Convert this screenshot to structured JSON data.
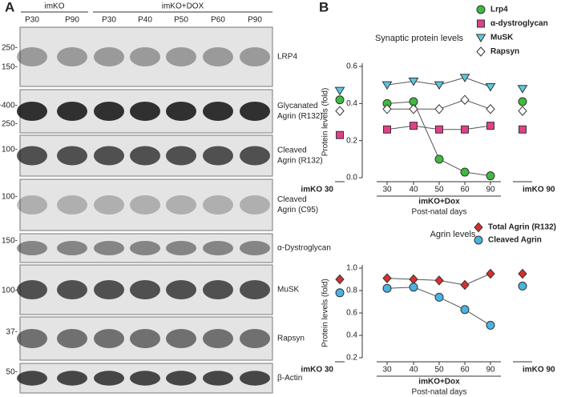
{
  "blot_panel": {
    "panel_label": "A",
    "groups": [
      {
        "label": "imKO",
        "lanes": [
          "P30",
          "P90"
        ]
      },
      {
        "label": "imKO+DOX",
        "lanes": [
          "P30",
          "P40",
          "P50",
          "P60",
          "P90"
        ]
      }
    ],
    "rows": [
      {
        "label": [
          "LRP4"
        ],
        "markers": [
          "250-",
          "150-"
        ]
      },
      {
        "label": [
          "Glycanated",
          "Agrin (R132)"
        ],
        "markers": [
          "~400-",
          "250-"
        ]
      },
      {
        "label": [
          "Cleaved",
          "Agrin (R132)"
        ],
        "markers": [
          "100-"
        ]
      },
      {
        "label": [
          "Cleaved",
          "Agrin (C95)"
        ],
        "markers": [
          "100-"
        ]
      },
      {
        "label": [
          "α-Dystroglycan"
        ],
        "markers": [
          "150-"
        ]
      },
      {
        "label": [
          "MuSK"
        ],
        "markers": [
          "100-"
        ]
      },
      {
        "label": [
          "Rapsyn"
        ],
        "markers": [
          "37-"
        ]
      },
      {
        "label": [
          "β-Actin"
        ],
        "markers": [
          "50-"
        ]
      }
    ]
  },
  "panel_b_label": "B",
  "chart_data": [
    {
      "type": "line",
      "title": "Synaptic protein levels",
      "y_label": "Protein levels (fold)",
      "x_label": "imKO+Dox",
      "x_sublabel": "Post-natal days",
      "categories": [
        "imKO 30",
        "30",
        "40",
        "50",
        "60",
        "90",
        "imKO 90"
      ],
      "ylim": [
        0,
        0.6
      ],
      "yticks": [
        {
          "value": 0,
          "label": "0.0"
        },
        0.2,
        0.4,
        0.6
      ],
      "series": [
        {
          "name": "Lrp4",
          "color": "#3dbb3d",
          "marker": "circle",
          "values": [
            0.42,
            0.4,
            0.41,
            0.1,
            0.03,
            0.01,
            0.41
          ]
        },
        {
          "name": "α-dystroglycan",
          "color": "#e0408a",
          "marker": "square",
          "values": [
            0.23,
            0.26,
            0.28,
            0.26,
            0.26,
            0.28,
            0.26
          ]
        },
        {
          "name": "MuSK",
          "color": "#5cc8e2",
          "marker": "triangle-down",
          "values": [
            0.47,
            0.5,
            0.52,
            0.5,
            0.54,
            0.49,
            0.48
          ]
        },
        {
          "name": "Rapsyn",
          "color": "#ffffff",
          "marker": "diamond",
          "values": [
            0.36,
            0.37,
            0.37,
            0.37,
            0.42,
            0.37,
            0.36
          ]
        }
      ]
    },
    {
      "type": "line",
      "title": "Agrin levels",
      "y_label": "Protein levels (fold)",
      "x_label": "imKO+Dox",
      "x_sublabel": "Post-natal days",
      "categories": [
        "imKO 30",
        "30",
        "40",
        "50",
        "60",
        "90",
        "imKO 90"
      ],
      "ylim": [
        0.2,
        1.0
      ],
      "yticks": [
        0.2,
        0.4,
        0.6,
        0.8,
        {
          "value": 1.0,
          "label": "1.0"
        }
      ],
      "series": [
        {
          "name": "Total Agrin (R132)",
          "color": "#d7302f",
          "marker": "diamond",
          "values": [
            0.9,
            0.91,
            0.9,
            0.89,
            0.85,
            0.95,
            0.95
          ]
        },
        {
          "name": "Cleaved Agrin",
          "color": "#4ab3e0",
          "marker": "circle",
          "values": [
            0.78,
            0.82,
            0.83,
            0.74,
            0.63,
            0.49,
            0.84
          ]
        }
      ]
    }
  ]
}
